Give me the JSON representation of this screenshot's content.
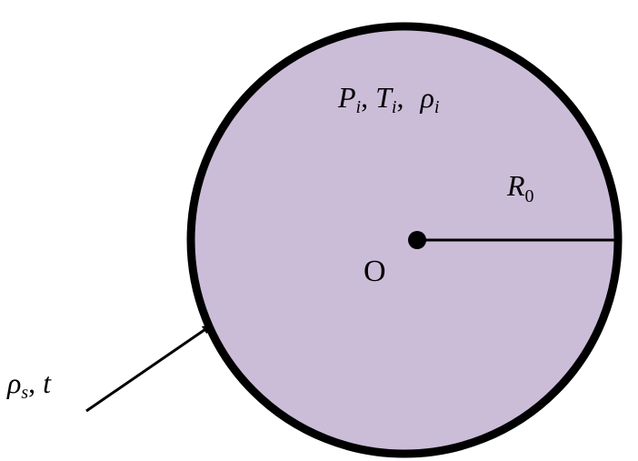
{
  "labels": {
    "interior": {
      "p_main": "P",
      "p_sub": "i",
      "sep1": ", ",
      "t_main": "T",
      "t_sub": "i",
      "sep2": ", ",
      "rho_main": "ρ",
      "rho_sub": "i"
    },
    "radius": {
      "main": "R",
      "sub": "0"
    },
    "center": "O",
    "shell": {
      "rho_main": "ρ",
      "rho_sub": "s",
      "sep": ", ",
      "t": "t"
    }
  },
  "colors": {
    "fill": "#cbbdd8",
    "stroke": "#000000",
    "background": "#ffffff"
  }
}
